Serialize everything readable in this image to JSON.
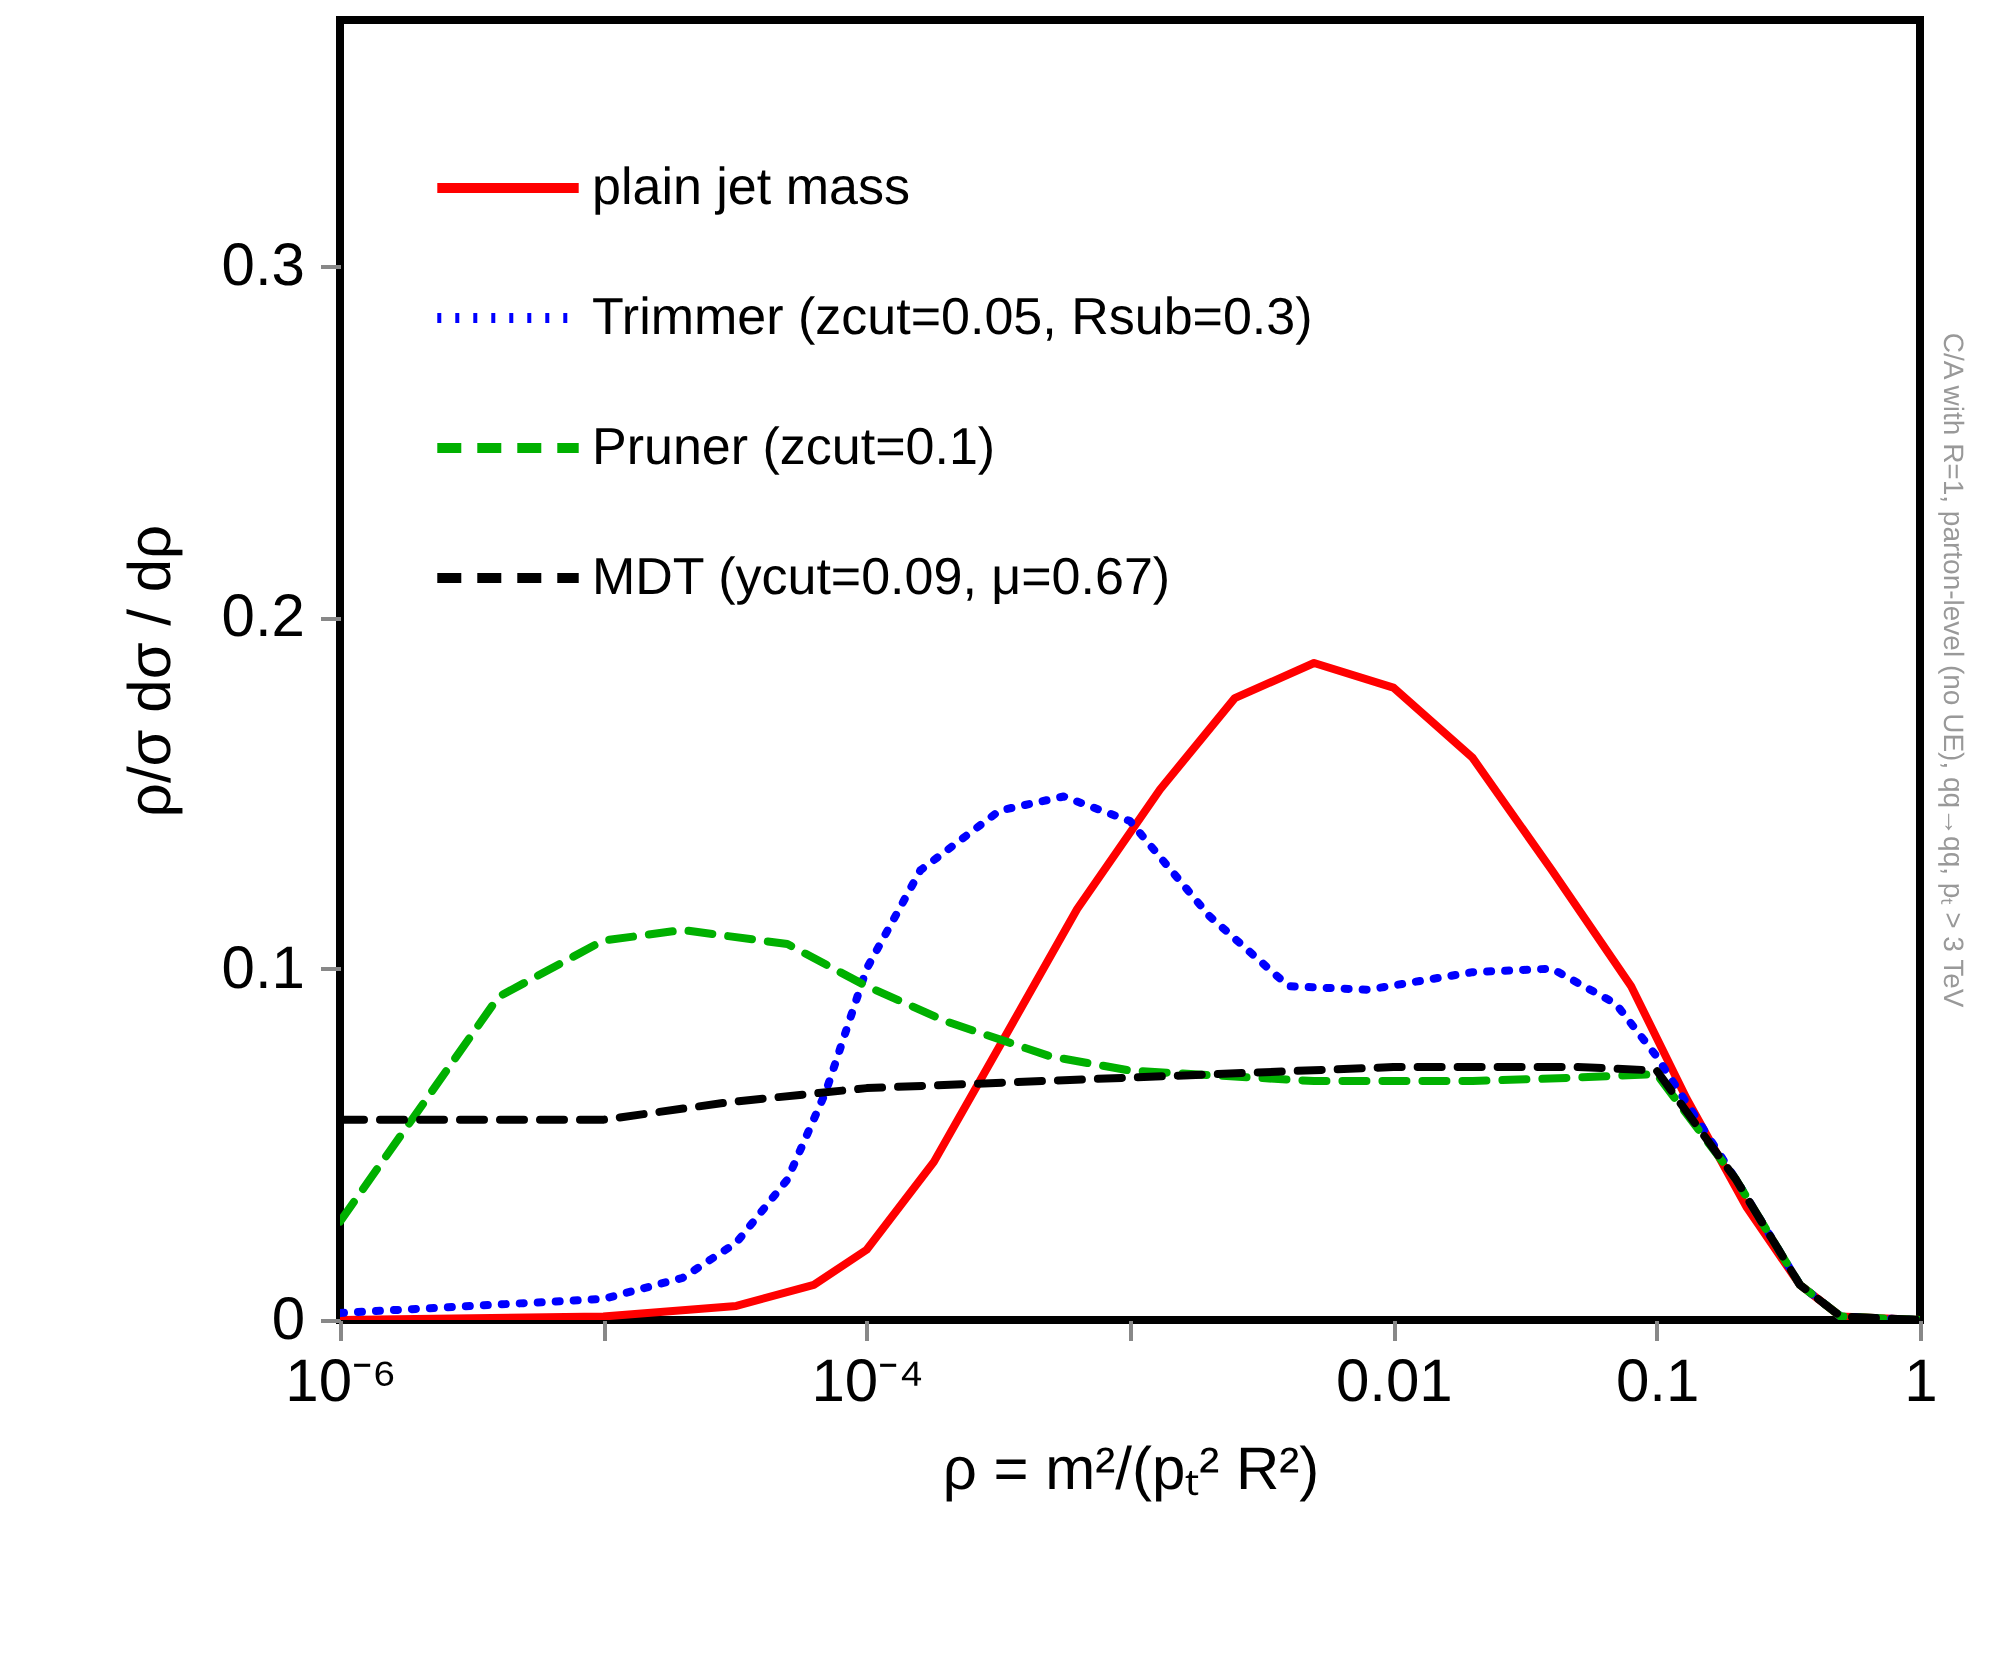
{
  "chart_data": {
    "type": "line",
    "xlabel": "ρ = m²/(pₜ² R²)",
    "ylabel": "ρ/σ dσ / dρ",
    "log": "x",
    "grid": false,
    "legend": "top left",
    "marker": "none",
    "xlim": [
      1e-06,
      1
    ],
    "ylim": [
      0,
      0.37
    ],
    "xticks": [
      {
        "value": 1e-06,
        "label": "10⁻⁶"
      },
      {
        "value": 1e-05,
        "label": null
      },
      {
        "value": 0.0001,
        "label": "10⁻⁴"
      },
      {
        "value": 0.001,
        "label": null
      },
      0.01,
      0.1,
      1
    ],
    "yticks": [
      0,
      0.1,
      0.2,
      0.3
    ],
    "annotations": [
      "C/A with R=1, parton-level (no UE), qq→qq, pₜ > 3 TeV"
    ],
    "series": [
      {
        "name": "plain jet mass",
        "color": "#ff0000",
        "line_style": "solid",
        "x": [
          1e-06,
          1e-05,
          3.2e-05,
          6.3e-05,
          0.0001,
          0.00018,
          0.00032,
          0.00063,
          0.0013,
          0.0025,
          0.005,
          0.01,
          0.02,
          0.04,
          0.08,
          0.13,
          0.22,
          0.35,
          0.5,
          1
        ],
        "values": [
          0,
          0.001,
          0.004,
          0.01,
          0.02,
          0.045,
          0.078,
          0.117,
          0.151,
          0.177,
          0.187,
          0.18,
          0.16,
          0.128,
          0.095,
          0.063,
          0.032,
          0.01,
          0.001,
          0
        ]
      },
      {
        "name": "Trimmer (zcut=0.05, Rsub=0.3)",
        "color": "#0000ff",
        "line_style": "dotted",
        "x": [
          1e-06,
          1e-05,
          2e-05,
          3.2e-05,
          5e-05,
          7e-05,
          0.0001,
          0.00016,
          0.00032,
          0.00056,
          0.001,
          0.002,
          0.004,
          0.008,
          0.02,
          0.04,
          0.07,
          0.1,
          0.2,
          0.35,
          0.5,
          1
        ],
        "values": [
          0.002,
          0.006,
          0.012,
          0.022,
          0.04,
          0.065,
          0.1,
          0.128,
          0.145,
          0.149,
          0.142,
          0.115,
          0.095,
          0.094,
          0.099,
          0.1,
          0.09,
          0.075,
          0.04,
          0.01,
          0.001,
          0
        ]
      },
      {
        "name": "Pruner (zcut=0.1)",
        "color": "#00b000",
        "line_style": "dashed",
        "x": [
          1e-06,
          2e-06,
          4e-06,
          1e-05,
          2e-05,
          5e-05,
          0.0001,
          0.0002,
          0.0005,
          0.001,
          0.005,
          0.02,
          0.05,
          0.1,
          0.2,
          0.35,
          0.5,
          1
        ],
        "values": [
          0.028,
          0.06,
          0.092,
          0.108,
          0.111,
          0.107,
          0.095,
          0.085,
          0.075,
          0.071,
          0.068,
          0.068,
          0.069,
          0.07,
          0.04,
          0.01,
          0.001,
          0
        ]
      },
      {
        "name": "MDT (ycut=0.09, μ=0.67)",
        "color": "#000000",
        "line_style": "dashed",
        "x": [
          1e-06,
          1e-05,
          3e-05,
          0.0001,
          0.001,
          0.01,
          0.05,
          0.1,
          0.2,
          0.35,
          0.5,
          1
        ],
        "values": [
          0.057,
          0.057,
          0.062,
          0.066,
          0.069,
          0.072,
          0.072,
          0.071,
          0.04,
          0.01,
          0.001,
          0
        ]
      }
    ]
  }
}
